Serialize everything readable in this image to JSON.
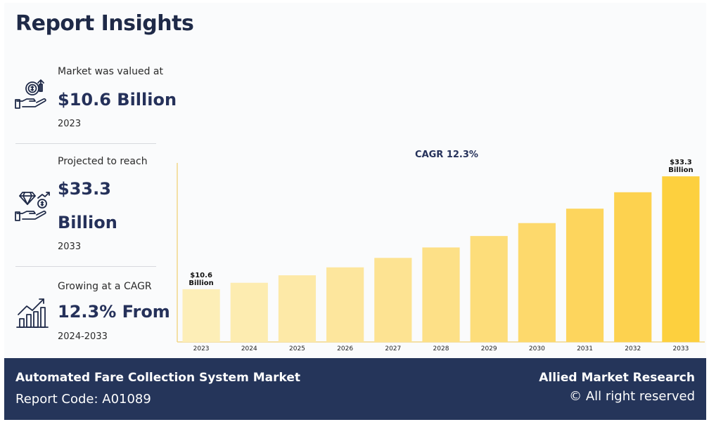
{
  "header": {
    "title": "Report Insights"
  },
  "stats": [
    {
      "label": "Market was valued at",
      "value_lines": [
        "$10.6 Billion"
      ],
      "year": "2023",
      "icon": "money-hand-icon"
    },
    {
      "label": "Projected to reach",
      "value_lines": [
        "$33.3",
        "Billion"
      ],
      "year": "2033",
      "icon": "diamond-hand-icon"
    },
    {
      "label": "Growing at a CAGR",
      "value_lines": [
        "12.3% From"
      ],
      "year": "2024-2033",
      "icon": "growth-chart-icon"
    }
  ],
  "chart_data": {
    "type": "bar",
    "title": "CAGR 12.3%",
    "categories": [
      "2023",
      "2024",
      "2025",
      "2026",
      "2027",
      "2028",
      "2029",
      "2030",
      "2031",
      "2032",
      "2033"
    ],
    "values": [
      10.6,
      11.9,
      13.4,
      15.0,
      16.9,
      19.0,
      21.3,
      23.9,
      26.8,
      30.1,
      33.3
    ],
    "annotations": [
      {
        "index": 0,
        "lines": [
          "$10.6",
          "Billion"
        ]
      },
      {
        "index": 10,
        "lines": [
          "$33.3",
          "Billion"
        ]
      }
    ],
    "colors": [
      "#fdeeb7",
      "#fdecb0",
      "#fde9a7",
      "#fde69d",
      "#fde392",
      "#fde087",
      "#fddd7a",
      "#fdd96c",
      "#fdd55d",
      "#fdd24f",
      "#fdd03e"
    ],
    "axis_color": "#f1d88a",
    "ylim": [
      0,
      36
    ],
    "grid": false
  },
  "footer": {
    "market_name": "Automated Fare Collection System Market",
    "report_code": "Report Code: A01089",
    "brand": "Allied Market Research",
    "rights": "© All right reserved"
  }
}
